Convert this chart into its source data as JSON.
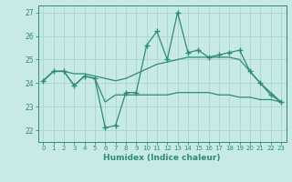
{
  "xlabel": "Humidex (Indice chaleur)",
  "x": [
    0,
    1,
    2,
    3,
    4,
    5,
    6,
    7,
    8,
    9,
    10,
    11,
    12,
    13,
    14,
    15,
    16,
    17,
    18,
    19,
    20,
    21,
    22,
    23
  ],
  "line1": [
    24.1,
    24.5,
    24.5,
    23.9,
    24.3,
    24.2,
    22.1,
    22.2,
    23.6,
    23.6,
    25.6,
    26.2,
    25.0,
    27.0,
    25.3,
    25.4,
    25.1,
    25.2,
    25.3,
    25.4,
    24.5,
    24.0,
    23.5,
    23.2
  ],
  "line2": [
    24.1,
    24.5,
    24.5,
    24.4,
    24.4,
    24.3,
    24.2,
    24.1,
    24.2,
    24.4,
    24.6,
    24.8,
    24.9,
    25.0,
    25.1,
    25.1,
    25.1,
    25.1,
    25.1,
    25.0,
    24.5,
    24.0,
    23.6,
    23.2
  ],
  "line3": [
    24.1,
    24.5,
    24.5,
    23.9,
    24.3,
    24.2,
    23.2,
    23.5,
    23.5,
    23.5,
    23.5,
    23.5,
    23.5,
    23.6,
    23.6,
    23.6,
    23.6,
    23.5,
    23.5,
    23.4,
    23.4,
    23.3,
    23.3,
    23.2
  ],
  "color": "#2e8b72",
  "bg_color": "#c8eae6",
  "grid_color": "#a8d4d0",
  "ylim": [
    21.5,
    27.3
  ],
  "yticks": [
    22,
    23,
    24,
    25,
    26,
    27
  ],
  "xlim": [
    -0.5,
    23.5
  ]
}
